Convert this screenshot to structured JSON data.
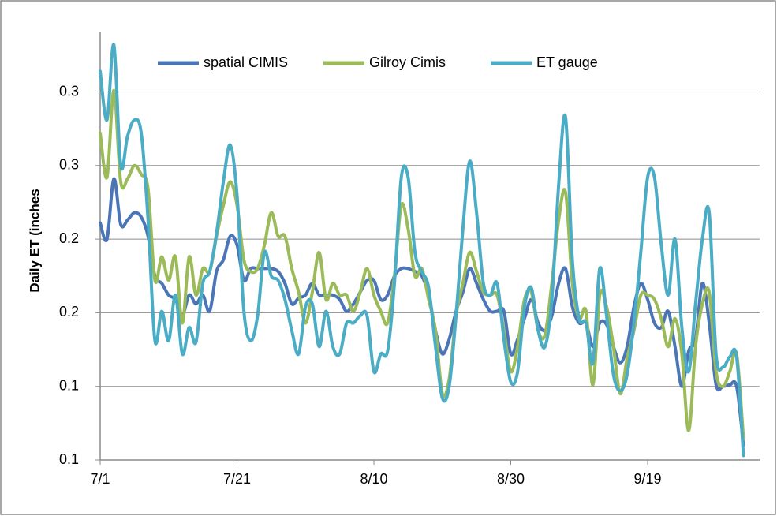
{
  "chart_data": {
    "type": "line",
    "y_label": "Daily ET (inches",
    "categories": [
      "7/1",
      null,
      null,
      null,
      null,
      null,
      null,
      null,
      null,
      null,
      null,
      null,
      null,
      null,
      null,
      null,
      null,
      null,
      null,
      null,
      "7/21",
      null,
      null,
      null,
      null,
      null,
      null,
      null,
      null,
      null,
      null,
      null,
      null,
      null,
      null,
      null,
      null,
      null,
      null,
      null,
      "8/10",
      null,
      null,
      null,
      null,
      null,
      null,
      null,
      null,
      null,
      null,
      null,
      null,
      null,
      null,
      null,
      null,
      null,
      null,
      null,
      "8/30",
      null,
      null,
      null,
      null,
      null,
      null,
      null,
      null,
      null,
      null,
      null,
      null,
      null,
      null,
      null,
      null,
      null,
      null,
      null,
      "9/19",
      null,
      null,
      null,
      null,
      null,
      null,
      null,
      null,
      null,
      null,
      null,
      null,
      null,
      null
    ],
    "series": [
      {
        "name": "spatial  CIMIS",
        "color": "#4a76b8",
        "values": [
          0.211,
          0.2,
          0.241,
          0.21,
          0.213,
          0.218,
          0.215,
          0.202,
          0.175,
          0.17,
          0.162,
          0.159,
          0.148,
          0.162,
          0.156,
          0.162,
          0.151,
          0.178,
          0.186,
          0.202,
          0.196,
          0.172,
          0.18,
          0.18,
          0.18,
          0.18,
          0.178,
          0.17,
          0.156,
          0.16,
          0.162,
          0.17,
          0.162,
          0.162,
          0.162,
          0.159,
          0.151,
          0.156,
          0.164,
          0.172,
          0.172,
          0.159,
          0.162,
          0.175,
          0.18,
          0.18,
          0.178,
          0.175,
          0.162,
          0.138,
          0.122,
          0.132,
          0.151,
          0.164,
          0.18,
          0.17,
          0.159,
          0.151,
          0.151,
          0.151,
          0.122,
          0.132,
          0.146,
          0.159,
          0.143,
          0.138,
          0.148,
          0.17,
          0.18,
          0.154,
          0.143,
          0.143,
          0.127,
          0.143,
          0.142,
          0.127,
          0.116,
          0.127,
          0.154,
          0.17,
          0.159,
          0.143,
          0.14,
          0.151,
          0.127,
          0.1,
          0.124,
          0.132,
          0.17,
          0.143,
          0.101,
          0.1,
          0.101,
          0.1,
          0.06
        ]
      },
      {
        "name": "Gilroy Cimis",
        "color": "#9bbb59",
        "values": [
          0.272,
          0.242,
          0.301,
          0.239,
          0.241,
          0.25,
          0.244,
          0.234,
          0.172,
          0.188,
          0.172,
          0.188,
          0.143,
          0.188,
          0.162,
          0.18,
          0.178,
          0.202,
          0.223,
          0.239,
          0.223,
          0.186,
          0.178,
          0.18,
          0.196,
          0.218,
          0.202,
          0.202,
          0.18,
          0.164,
          0.143,
          0.164,
          0.191,
          0.159,
          0.17,
          0.162,
          0.162,
          0.151,
          0.164,
          0.18,
          0.162,
          0.151,
          0.143,
          0.175,
          0.223,
          0.207,
          0.175,
          0.18,
          0.159,
          0.138,
          0.095,
          0.105,
          0.148,
          0.17,
          0.191,
          0.178,
          0.164,
          0.162,
          0.162,
          0.138,
          0.11,
          0.127,
          0.159,
          0.164,
          0.138,
          0.135,
          0.17,
          0.213,
          0.232,
          0.17,
          0.146,
          0.151,
          0.101,
          0.162,
          0.154,
          0.127,
          0.095,
          0.119,
          0.138,
          0.162,
          0.162,
          0.159,
          0.146,
          0.127,
          0.146,
          0.122,
          0.07,
          0.127,
          0.156,
          0.164,
          0.11,
          0.1,
          0.11,
          0.122,
          0.065
        ]
      },
      {
        "name": "ET gauge",
        "color": "#4bacc6",
        "values": [
          0.314,
          0.281,
          0.332,
          0.25,
          0.27,
          0.281,
          0.272,
          0.213,
          0.131,
          0.151,
          0.131,
          0.162,
          0.122,
          0.14,
          0.13,
          0.17,
          0.178,
          0.204,
          0.239,
          0.264,
          0.23,
          0.151,
          0.131,
          0.148,
          0.191,
          0.175,
          0.172,
          0.159,
          0.138,
          0.122,
          0.154,
          0.156,
          0.127,
          0.151,
          0.127,
          0.122,
          0.143,
          0.143,
          0.148,
          0.148,
          0.11,
          0.122,
          0.124,
          0.17,
          0.242,
          0.242,
          0.191,
          0.178,
          0.167,
          0.127,
          0.092,
          0.1,
          0.148,
          0.207,
          0.253,
          0.218,
          0.17,
          0.162,
          0.17,
          0.132,
          0.103,
          0.11,
          0.154,
          0.167,
          0.138,
          0.127,
          0.159,
          0.237,
          0.283,
          0.186,
          0.146,
          0.143,
          0.116,
          0.18,
          0.148,
          0.108,
          0.097,
          0.108,
          0.143,
          0.191,
          0.242,
          0.242,
          0.196,
          0.162,
          0.2,
          0.14,
          0.11,
          0.156,
          0.2,
          0.218,
          0.122,
          0.113,
          0.12,
          0.12,
          0.053
        ]
      }
    ],
    "ylim": [
      0.05,
      0.341
    ],
    "yticks": [
      {
        "value": 0.05,
        "label": "0.1"
      },
      {
        "value": 0.1,
        "label": "0.1"
      },
      {
        "value": 0.15,
        "label": "0.2"
      },
      {
        "value": 0.2,
        "label": "0.2"
      },
      {
        "value": 0.25,
        "label": "0.3"
      },
      {
        "value": 0.3,
        "label": "0.3"
      }
    ],
    "grid": true,
    "legend": "top"
  }
}
